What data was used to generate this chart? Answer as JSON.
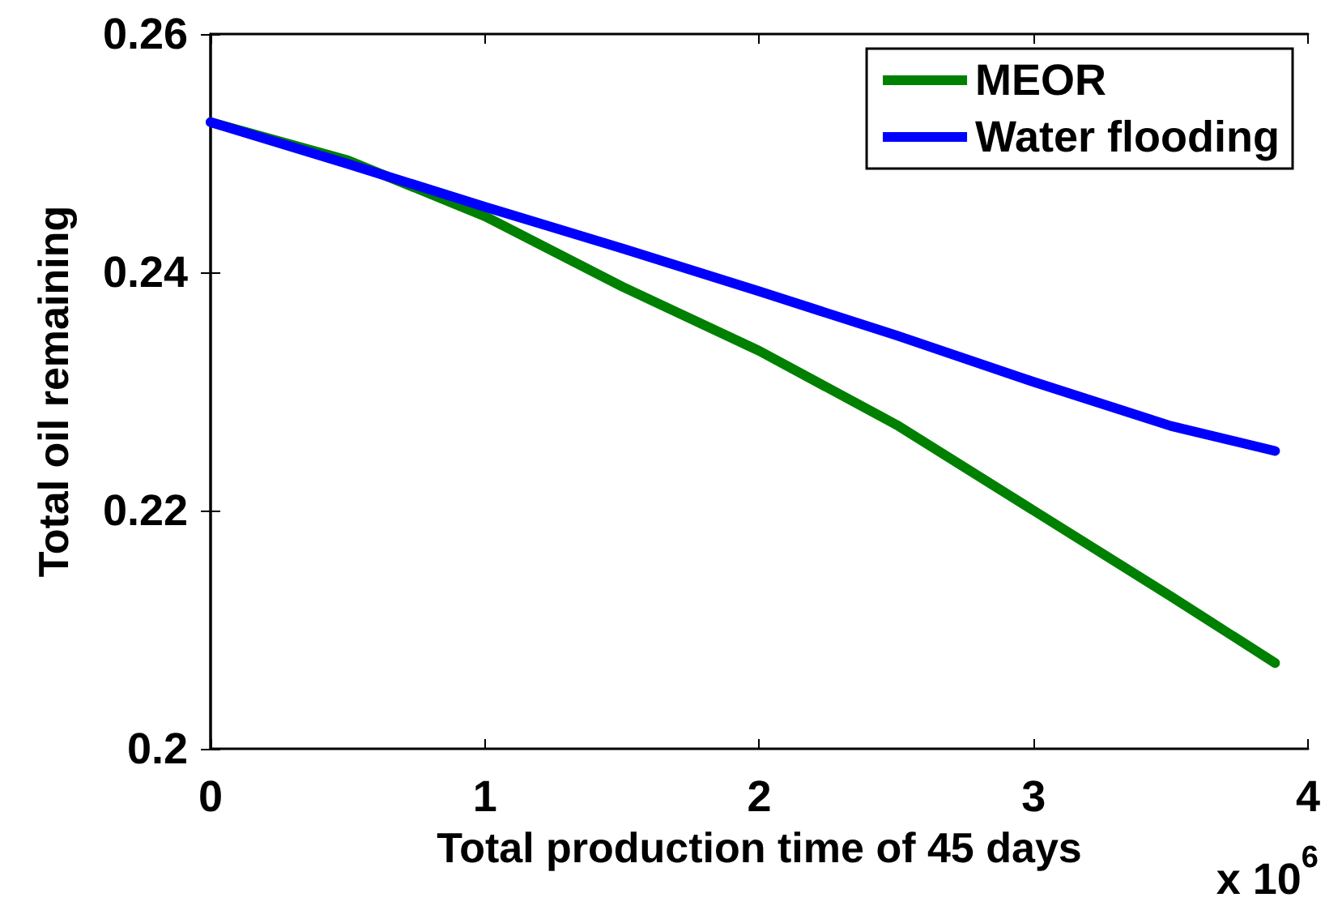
{
  "chart_data": {
    "type": "line",
    "xlabel": "Total production time of 45 days",
    "ylabel": "Total oil remaining",
    "annotations": [
      "x 10$^{6}$"
    ],
    "x": [
      0,
      0.5,
      1,
      1.5,
      2,
      2.5,
      3,
      3.5,
      3.88
    ],
    "series": [
      {
        "name": "MEOR",
        "color": "#008000",
        "values": [
          0.2526,
          0.2494,
          0.2447,
          0.2388,
          0.2334,
          0.2272,
          0.22,
          0.2128,
          0.2072
        ]
      },
      {
        "name": "Water flooding",
        "color": "#0000ff",
        "values": [
          0.2526,
          0.2491,
          0.2455,
          0.242,
          0.2384,
          0.2347,
          0.2308,
          0.2271,
          0.225
        ]
      }
    ],
    "xlim": [
      0,
      4
    ],
    "xticks": [
      0,
      1,
      2,
      3,
      4
    ],
    "ylim": [
      0.2,
      0.26
    ],
    "yticks": [
      0.2,
      0.22,
      0.24,
      0.26
    ],
    "grid": false,
    "legend": "top right",
    "marker": "none",
    "line_style": "solid"
  }
}
